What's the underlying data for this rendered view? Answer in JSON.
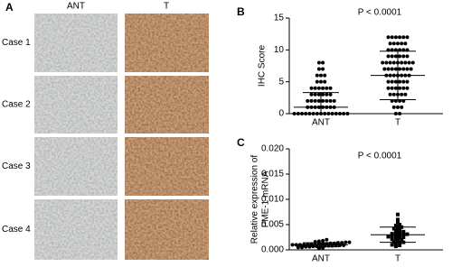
{
  "panel_a": {
    "label": "A",
    "columns": [
      "ANT",
      "T"
    ],
    "rows": [
      "Case  1",
      "Case  2",
      "Case  3",
      "Case  4"
    ]
  },
  "chart_data": [
    {
      "type": "strip",
      "panel_label": "B",
      "title": "P < 0.0001",
      "y_label": "IHC  Score",
      "categories": [
        "ANT",
        "T"
      ],
      "ylim": [
        0,
        15
      ],
      "yticks": [
        0,
        5,
        10,
        15
      ],
      "series": [
        {
          "marker": "circle",
          "color": "#000000",
          "mean": 1,
          "sd": 2.3,
          "values": [
            0,
            0,
            0,
            0,
            0,
            0,
            0,
            0,
            0,
            0,
            0,
            0,
            0,
            0,
            0,
            1,
            1,
            1,
            1,
            1,
            1,
            1,
            1,
            2,
            2,
            2,
            2,
            2,
            2,
            2,
            2,
            3,
            3,
            3,
            3,
            3,
            3,
            4,
            4,
            4,
            4,
            4,
            4,
            5,
            5,
            5,
            6,
            6,
            6,
            7,
            7,
            8,
            8
          ]
        },
        {
          "marker": "circle",
          "color": "#000000",
          "mean": 6,
          "sd": 3.8,
          "values": [
            0,
            0,
            1,
            1,
            1,
            2,
            2,
            2,
            2,
            3,
            3,
            3,
            3,
            3,
            4,
            4,
            4,
            4,
            4,
            4,
            5,
            5,
            5,
            5,
            5,
            5,
            6,
            6,
            6,
            6,
            6,
            6,
            6,
            7,
            7,
            7,
            7,
            7,
            7,
            7,
            7,
            8,
            8,
            8,
            8,
            8,
            8,
            8,
            8,
            8,
            9,
            9,
            9,
            9,
            9,
            9,
            10,
            10,
            10,
            10,
            10,
            10,
            11,
            11,
            11,
            11,
            11,
            12,
            12,
            12,
            12,
            12,
            12
          ]
        }
      ]
    },
    {
      "type": "strip",
      "panel_label": "C",
      "title": "P < 0.0001",
      "y_label": [
        "Relative expression of",
        "PME-1 mRNA"
      ],
      "categories": [
        "ANT",
        "T"
      ],
      "ylim": [
        0,
        0.02
      ],
      "yticks": [
        {
          "value": 0,
          "label": "0.000"
        },
        {
          "value": 0.005,
          "label": "0.005"
        },
        {
          "value": 0.01,
          "label": "0.010"
        },
        {
          "value": 0.015,
          "label": "0.015"
        },
        {
          "value": 0.02,
          "label": "0.020"
        }
      ],
      "series": [
        {
          "marker": "circle",
          "color": "#000000",
          "mean": 0.001,
          "sd": 0.0004,
          "values": [
            0.0003,
            0.0004,
            0.0005,
            0.0005,
            0.0006,
            0.0006,
            0.0007,
            0.0007,
            0.0007,
            0.0008,
            0.0008,
            0.0008,
            0.0009,
            0.0009,
            0.0009,
            0.001,
            0.001,
            0.001,
            0.001,
            0.0011,
            0.0011,
            0.0011,
            0.0012,
            0.0012,
            0.0012,
            0.0013,
            0.0013,
            0.0014,
            0.0014,
            0.0015,
            0.0015,
            0.0016,
            0.0017,
            0.0018,
            0.002
          ]
        },
        {
          "marker": "square",
          "color": "#000000",
          "mean": 0.003,
          "sd": 0.0015,
          "values": [
            0.0007,
            0.0009,
            0.001,
            0.0012,
            0.0014,
            0.0015,
            0.0016,
            0.0018,
            0.002,
            0.0021,
            0.0022,
            0.0024,
            0.0025,
            0.0026,
            0.0027,
            0.0028,
            0.003,
            0.003,
            0.0031,
            0.0032,
            0.0033,
            0.0035,
            0.0036,
            0.0038,
            0.004,
            0.0042,
            0.0044,
            0.0045,
            0.0048,
            0.005,
            0.0055,
            0.006,
            0.007
          ]
        }
      ]
    }
  ]
}
